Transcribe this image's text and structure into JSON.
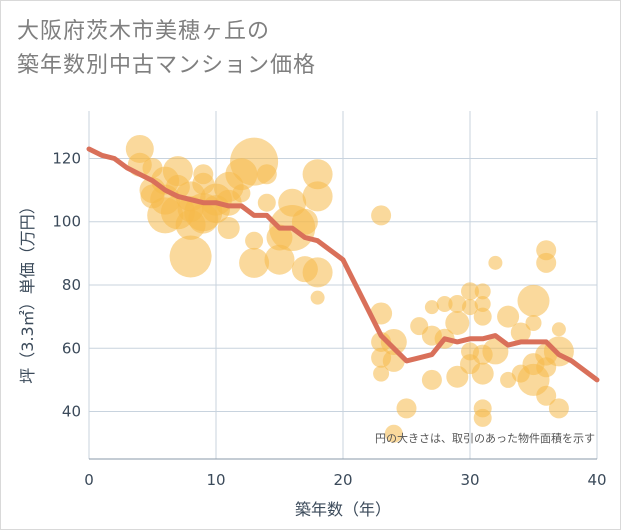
{
  "chart_data": {
    "type": "scatter",
    "title": "大阪府茨木市美穂ヶ丘の\n築年数別中古マンション価格",
    "xlabel": "築年数（年）",
    "ylabel": "坪（3.3㎡）単価（万円）",
    "xlim": [
      0,
      40
    ],
    "ylim": [
      25,
      135
    ],
    "x_ticks": [
      0,
      10,
      20,
      30,
      40
    ],
    "y_ticks": [
      40,
      60,
      80,
      100,
      120
    ],
    "grid": true,
    "note": "円の大きさは、取引のあった物件面積を示す",
    "colors": {
      "bubble": "#f5b94a",
      "line": "#d9705a",
      "grid": "#c8d3de"
    },
    "series": [
      {
        "kind": "bubbles",
        "points": [
          {
            "x": 4,
            "y": 123,
            "s": 0.5
          },
          {
            "x": 4,
            "y": 118,
            "s": 0.4
          },
          {
            "x": 5,
            "y": 117,
            "s": 0.3
          },
          {
            "x": 5,
            "y": 110,
            "s": 0.45
          },
          {
            "x": 5,
            "y": 108,
            "s": 0.4
          },
          {
            "x": 6,
            "y": 113,
            "s": 0.5
          },
          {
            "x": 6,
            "y": 107,
            "s": 0.55
          },
          {
            "x": 6,
            "y": 102,
            "s": 0.7
          },
          {
            "x": 7,
            "y": 116,
            "s": 0.55
          },
          {
            "x": 7,
            "y": 111,
            "s": 0.4
          },
          {
            "x": 7,
            "y": 103,
            "s": 0.65
          },
          {
            "x": 8,
            "y": 108,
            "s": 0.55
          },
          {
            "x": 8,
            "y": 104,
            "s": 0.45
          },
          {
            "x": 8,
            "y": 99,
            "s": 0.55
          },
          {
            "x": 8,
            "y": 89,
            "s": 0.85
          },
          {
            "x": 9,
            "y": 115,
            "s": 0.3
          },
          {
            "x": 9,
            "y": 112,
            "s": 0.35
          },
          {
            "x": 9,
            "y": 103,
            "s": 0.75
          },
          {
            "x": 9,
            "y": 101,
            "s": 0.55
          },
          {
            "x": 10,
            "y": 107,
            "s": 0.6
          },
          {
            "x": 10,
            "y": 104,
            "s": 0.5
          },
          {
            "x": 11,
            "y": 111,
            "s": 0.55
          },
          {
            "x": 11,
            "y": 106,
            "s": 0.45
          },
          {
            "x": 11,
            "y": 98,
            "s": 0.35
          },
          {
            "x": 12,
            "y": 115,
            "s": 0.6
          },
          {
            "x": 12,
            "y": 109,
            "s": 0.25
          },
          {
            "x": 13,
            "y": 119,
            "s": 1.0
          },
          {
            "x": 13,
            "y": 94,
            "s": 0.25
          },
          {
            "x": 13,
            "y": 87,
            "s": 0.55
          },
          {
            "x": 14,
            "y": 115,
            "s": 0.3
          },
          {
            "x": 14,
            "y": 106,
            "s": 0.25
          },
          {
            "x": 15,
            "y": 95,
            "s": 0.45
          },
          {
            "x": 15,
            "y": 88,
            "s": 0.55
          },
          {
            "x": 16,
            "y": 106,
            "s": 0.5
          },
          {
            "x": 16,
            "y": 98,
            "s": 0.95
          },
          {
            "x": 17,
            "y": 100,
            "s": 0.45
          },
          {
            "x": 17,
            "y": 85,
            "s": 0.45
          },
          {
            "x": 18,
            "y": 115,
            "s": 0.55
          },
          {
            "x": 18,
            "y": 108,
            "s": 0.55
          },
          {
            "x": 18,
            "y": 84,
            "s": 0.55
          },
          {
            "x": 18,
            "y": 76,
            "s": 0.15
          },
          {
            "x": 23,
            "y": 102,
            "s": 0.3
          },
          {
            "x": 23,
            "y": 71,
            "s": 0.35
          },
          {
            "x": 23,
            "y": 62,
            "s": 0.3
          },
          {
            "x": 23,
            "y": 57,
            "s": 0.3
          },
          {
            "x": 23,
            "y": 52,
            "s": 0.2
          },
          {
            "x": 24,
            "y": 62,
            "s": 0.45
          },
          {
            "x": 24,
            "y": 56,
            "s": 0.35
          },
          {
            "x": 24,
            "y": 33,
            "s": 0.25
          },
          {
            "x": 25,
            "y": 41,
            "s": 0.3
          },
          {
            "x": 26,
            "y": 67,
            "s": 0.25
          },
          {
            "x": 27,
            "y": 73,
            "s": 0.15
          },
          {
            "x": 27,
            "y": 64,
            "s": 0.3
          },
          {
            "x": 27,
            "y": 50,
            "s": 0.3
          },
          {
            "x": 28,
            "y": 74,
            "s": 0.2
          },
          {
            "x": 28,
            "y": 63,
            "s": 0.3
          },
          {
            "x": 29,
            "y": 74,
            "s": 0.25
          },
          {
            "x": 29,
            "y": 68,
            "s": 0.4
          },
          {
            "x": 29,
            "y": 51,
            "s": 0.35
          },
          {
            "x": 30,
            "y": 78,
            "s": 0.25
          },
          {
            "x": 30,
            "y": 73,
            "s": 0.2
          },
          {
            "x": 30,
            "y": 59,
            "s": 0.25
          },
          {
            "x": 30,
            "y": 55,
            "s": 0.3
          },
          {
            "x": 31,
            "y": 78,
            "s": 0.2
          },
          {
            "x": 31,
            "y": 74,
            "s": 0.2
          },
          {
            "x": 31,
            "y": 70,
            "s": 0.25
          },
          {
            "x": 31,
            "y": 58,
            "s": 0.3
          },
          {
            "x": 31,
            "y": 52,
            "s": 0.35
          },
          {
            "x": 31,
            "y": 41,
            "s": 0.25
          },
          {
            "x": 31,
            "y": 38,
            "s": 0.25
          },
          {
            "x": 32,
            "y": 87,
            "s": 0.15
          },
          {
            "x": 32,
            "y": 59,
            "s": 0.45
          },
          {
            "x": 33,
            "y": 70,
            "s": 0.35
          },
          {
            "x": 33,
            "y": 50,
            "s": 0.2
          },
          {
            "x": 34,
            "y": 65,
            "s": 0.3
          },
          {
            "x": 34,
            "y": 52,
            "s": 0.25
          },
          {
            "x": 35,
            "y": 75,
            "s": 0.6
          },
          {
            "x": 35,
            "y": 68,
            "s": 0.2
          },
          {
            "x": 35,
            "y": 55,
            "s": 0.35
          },
          {
            "x": 35,
            "y": 50,
            "s": 0.6
          },
          {
            "x": 36,
            "y": 91,
            "s": 0.3
          },
          {
            "x": 36,
            "y": 87,
            "s": 0.3
          },
          {
            "x": 36,
            "y": 58,
            "s": 0.35
          },
          {
            "x": 36,
            "y": 54,
            "s": 0.3
          },
          {
            "x": 36,
            "y": 45,
            "s": 0.3
          },
          {
            "x": 37,
            "y": 66,
            "s": 0.15
          },
          {
            "x": 37,
            "y": 59,
            "s": 0.55
          },
          {
            "x": 37,
            "y": 41,
            "s": 0.3
          }
        ]
      },
      {
        "kind": "line",
        "x": [
          0,
          1,
          2,
          3,
          4,
          5,
          6,
          7,
          8,
          9,
          10,
          11,
          12,
          13,
          14,
          15,
          16,
          17,
          18,
          19,
          20,
          21,
          22,
          23,
          24,
          25,
          26,
          27,
          28,
          29,
          30,
          31,
          32,
          33,
          34,
          35,
          36,
          37,
          38,
          39,
          40
        ],
        "y": [
          123,
          121,
          120,
          117,
          115,
          113,
          110,
          108,
          107,
          106,
          106,
          105,
          105,
          102,
          102,
          98,
          98,
          95,
          94,
          91,
          88,
          80,
          72,
          64,
          60,
          56,
          57,
          58,
          63,
          62,
          63,
          63,
          64,
          61,
          62,
          62,
          62,
          58,
          56,
          53,
          50
        ]
      }
    ]
  }
}
